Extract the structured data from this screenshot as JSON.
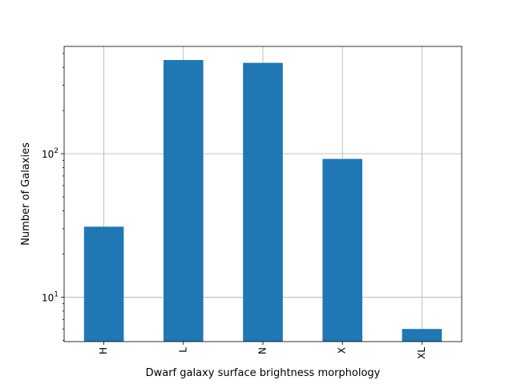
{
  "chart_data": {
    "type": "bar",
    "title": "",
    "xlabel": "Dwarf galaxy surface brightness morphology",
    "ylabel": "Number of Galaxies",
    "categories": [
      "H",
      "L",
      "N",
      "X",
      "XL"
    ],
    "values": [
      31,
      450,
      430,
      92,
      6
    ],
    "yscale": "log",
    "ylim": [
      4.9,
      560
    ],
    "y_major_ticks": [
      10,
      100
    ],
    "y_major_tick_labels": [
      "10^1",
      "10^2"
    ],
    "grid": true,
    "bar_color": "#1f77b4",
    "grid_color": "#b0b0b0"
  }
}
